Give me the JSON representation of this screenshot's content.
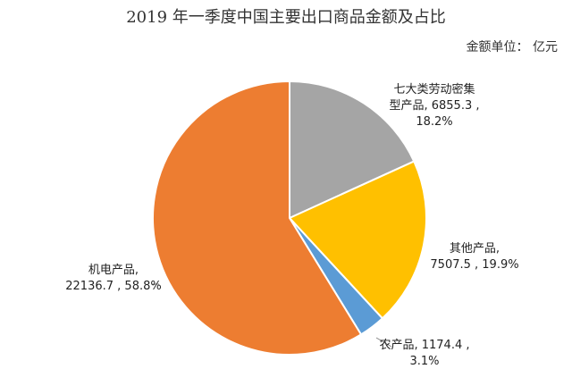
{
  "chart_data": {
    "type": "pie",
    "title": "2019 年一季度中国主要出口商品金额及占比",
    "unit_label": "金额单位： 亿元",
    "start_angle_deg": 0,
    "direction": "clockwise",
    "slices": [
      {
        "name": "七大类劳动密集型产品",
        "value": 6855.3,
        "percent": "18.2%",
        "color": "#a5a5a5",
        "label_lines": [
          "七大类劳动密集",
          "型产品, 6855.3 ,",
          "18.2%"
        ]
      },
      {
        "name": "其他产品",
        "value": 7507.5,
        "percent": "19.9%",
        "color": "#ffc000",
        "label_lines": [
          "其他产品,",
          "7507.5 , 19.9%"
        ]
      },
      {
        "name": "农产品",
        "value": 1174.4,
        "percent": "3.1%",
        "color": "#5b9bd5",
        "label_lines": [
          "农产品, 1174.4 ,",
          "3.1%"
        ]
      },
      {
        "name": "机电产品",
        "value": 22136.7,
        "percent": "58.8%",
        "color": "#ed7d31",
        "label_lines": [
          "机电产品,",
          "22136.7 , 58.8%"
        ]
      }
    ]
  }
}
